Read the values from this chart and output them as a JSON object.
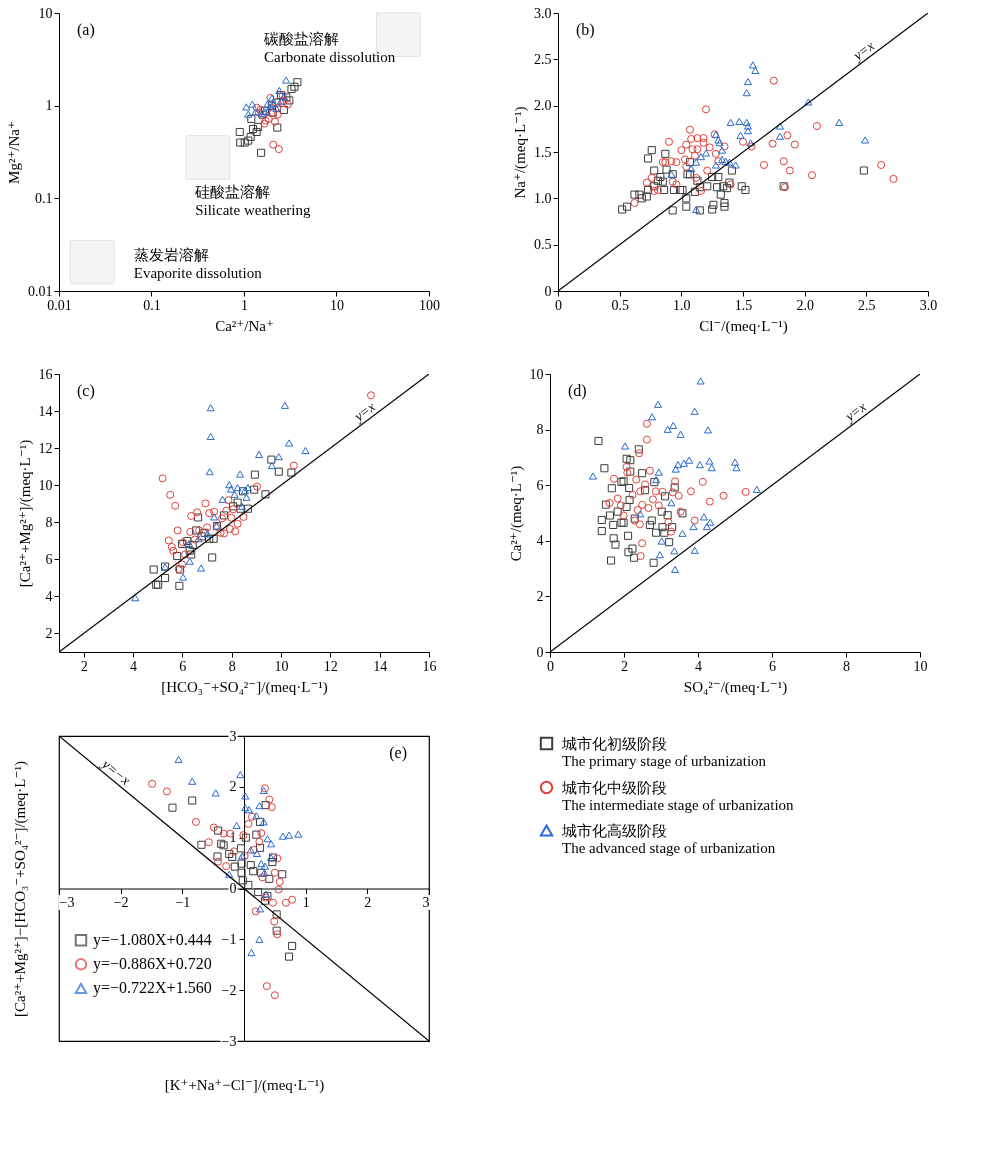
{
  "chart_data": [
    {
      "type": "scatter",
      "title": "(a)",
      "xlabel": "Ca²⁺/Na⁺",
      "ylabel": "Mg²⁺/Na⁺",
      "log": "xy",
      "xlim": [
        0.01,
        100
      ],
      "ylim": [
        0.01,
        10
      ],
      "xticks": [
        0.01,
        0.1,
        1,
        10,
        100
      ],
      "yticks": [
        0.01,
        0.1,
        1,
        10
      ],
      "annotations": [
        "碳酸盐溶解\nCarbonate dissolution",
        "硅酸盐溶解\nSilicate weathering",
        "蒸发岩溶解\nEvaporite dissolution"
      ],
      "series": [
        {
          "color": "#3c3c3c",
          "marker": "square",
          "x": [
            0.9,
            0.91,
            1.02,
            1.11,
            1.18,
            1.25,
            1.37,
            1.42,
            1.53,
            1.2,
            1.59,
            2.29,
            2.7,
            3.09,
            3.26,
            3.51,
            3.78,
            2.51,
            2.87,
            2.0,
            1.69,
            2.04,
            2.24
          ],
          "values": [
            0.52,
            0.4,
            0.4,
            0.42,
            0.46,
            0.56,
            0.52,
            0.59,
            0.31,
            0.72,
            0.8,
            0.58,
            0.9,
            1.14,
            1.51,
            1.6,
            1.79,
            1.3,
            1.23,
            1.0,
            0.88,
            0.84,
            1.08
          ]
        },
        {
          "color": "#e0403a",
          "marker": "circle",
          "x": [
            1.37,
            1.45,
            1.66,
            1.71,
            1.93,
            2.07,
            2.16,
            2.29,
            2.32,
            2.07,
            2.38,
            2.7,
            2.98,
            1.85,
            1.5,
            2.61
          ],
          "values": [
            0.95,
            0.84,
            0.64,
            0.69,
            1.21,
            0.84,
            0.67,
            0.95,
            0.8,
            0.38,
            0.34,
            1.12,
            1.03,
            0.72,
            0.9,
            1.3
          ]
        },
        {
          "color": "#2a6ad0",
          "marker": "triangle",
          "x": [
            1.06,
            1.23,
            1.11,
            1.33,
            2.85,
            2.41,
            1.79,
            2.07,
            2.24,
            1.93,
            1.7,
            2.7,
            2.51,
            1.57,
            2.0
          ],
          "values": [
            0.97,
            1.04,
            0.81,
            0.86,
            1.89,
            1.46,
            1.04,
            1.04,
            0.93,
            0.97,
            0.86,
            1.26,
            1.12,
            0.82,
            1.21
          ]
        }
      ]
    },
    {
      "type": "scatter",
      "title": "(b)",
      "xlabel": "Cl⁻/(meq·L⁻¹)",
      "ylabel": "Na⁺/(meq·L⁻¹)",
      "xlim": [
        0,
        3
      ],
      "ylim": [
        0,
        3
      ],
      "xticks": [
        0,
        0.5,
        {
          "value": 1,
          "label": "1.0"
        },
        1.5,
        {
          "value": 2,
          "label": "2.0"
        },
        2.5,
        {
          "value": 3,
          "label": "3.0"
        }
      ],
      "yticks": [
        0,
        0.5,
        {
          "value": 1,
          "label": "1.0"
        },
        1.5,
        {
          "value": 2,
          "label": "2.0"
        },
        2.5,
        {
          "value": 3,
          "label": "3.0"
        }
      ],
      "series": [
        {
          "color": "#3c3c3c",
          "marker": "square",
          "x": [
            0.52,
            0.56,
            0.62,
            0.66,
            0.68,
            0.72,
            0.73,
            0.76,
            0.73,
            0.78,
            0.78,
            0.81,
            0.83,
            0.85,
            0.87,
            0.88,
            0.86,
            0.93,
            0.93,
            0.94,
            0.99,
            1.01,
            1.04,
            1.04,
            1.05,
            1.07,
            1.07,
            1.11,
            1.13,
            1.15,
            1.15,
            1.21,
            1.25,
            1.25,
            1.26,
            1.29,
            1.3,
            1.32,
            1.34,
            1.35,
            1.35,
            1.37,
            1.39,
            1.41,
            1.49,
            1.52,
            1.83,
            2.48
          ],
          "values": [
            0.88,
            0.91,
            1.04,
            1.04,
            1.0,
            1.02,
            1.43,
            1.52,
            1.09,
            1.3,
            1.13,
            1.19,
            1.23,
            1.18,
            1.48,
            1.31,
            1.09,
            1.26,
            0.87,
            1.09,
            1.09,
            1.09,
            1.0,
            0.91,
            1.26,
            1.39,
            1.26,
            1.07,
            1.19,
            0.87,
            1.12,
            1.13,
            1.23,
            0.88,
            0.93,
            1.12,
            1.23,
            1.04,
            1.13,
            0.95,
            0.91,
            1.11,
            1.17,
            1.3,
            1.13,
            1.09,
            1.13,
            1.3
          ]
        },
        {
          "color": "#e0403a",
          "marker": "circle",
          "x": [
            0.62,
            0.72,
            0.76,
            0.78,
            0.81,
            0.85,
            0.87,
            0.9,
            0.92,
            0.93,
            0.96,
            0.96,
            1.0,
            1.03,
            1.04,
            1.04,
            1.07,
            1.08,
            1.09,
            1.11,
            1.12,
            1.13,
            1.13,
            1.16,
            1.18,
            1.18,
            1.2,
            1.21,
            1.23,
            1.27,
            1.28,
            1.3,
            1.35,
            1.4,
            1.5,
            1.57,
            1.67,
            1.74,
            1.75,
            1.83,
            1.84,
            1.86,
            1.88,
            1.92,
            2.06,
            2.1,
            2.62,
            2.72
          ],
          "values": [
            0.95,
            1.17,
            1.22,
            1.08,
            1.09,
            1.39,
            1.39,
            1.61,
            1.4,
            1.18,
            1.39,
            1.15,
            1.52,
            1.42,
            1.58,
            1.34,
            1.74,
            1.64,
            1.53,
            1.46,
            1.22,
            1.65,
            1.53,
            1.08,
            1.65,
            1.6,
            1.96,
            1.3,
            1.55,
            1.69,
            1.48,
            1.4,
            1.56,
            1.15,
            1.61,
            1.56,
            1.36,
            1.59,
            2.27,
            1.4,
            1.12,
            1.68,
            1.3,
            1.58,
            1.25,
            1.78,
            1.36,
            1.21
          ]
        },
        {
          "color": "#2a6ad0",
          "marker": "triangle",
          "x": [
            0.92,
            1.08,
            1.12,
            1.12,
            1.16,
            1.2,
            1.28,
            1.28,
            1.3,
            1.31,
            1.33,
            1.33,
            1.36,
            1.39,
            1.4,
            1.44,
            1.47,
            1.48,
            1.53,
            1.53,
            1.54,
            1.54,
            1.54,
            1.56,
            1.58,
            1.6,
            1.8,
            1.8,
            2.03,
            2.28,
            2.49
          ],
          "values": [
            1.26,
            1.32,
            1.39,
            0.88,
            1.45,
            1.49,
            1.69,
            1.36,
            1.63,
            1.6,
            1.52,
            1.42,
            1.4,
            1.39,
            1.82,
            1.36,
            1.83,
            1.68,
            2.14,
            1.82,
            1.78,
            1.73,
            2.26,
            1.6,
            2.44,
            2.38,
            1.67,
            1.78,
            2.04,
            1.82,
            1.63
          ]
        },
        {
          "type": "line",
          "name": "y=x",
          "color": "#000000",
          "x": [
            0,
            3
          ],
          "values": [
            0,
            3
          ]
        }
      ]
    },
    {
      "type": "scatter",
      "title": "(c)",
      "xlabel": "[HCO₃⁻+SO₄²⁻]/(meq·L⁻¹)",
      "ylabel": "[Ca²⁺+Mg²⁺]/(meq·L⁻¹)",
      "xlim": [
        1,
        16
      ],
      "ylim": [
        1,
        16
      ],
      "xticks": [
        2,
        4,
        6,
        8,
        10,
        12,
        14,
        16
      ],
      "yticks": [
        2,
        4,
        6,
        8,
        10,
        12,
        14,
        16
      ],
      "series": [
        {
          "color": "#3c3c3c",
          "marker": "square",
          "x": [
            4.84,
            4.94,
            5.02,
            5.3,
            5.3,
            5.79,
            5.88,
            5.91,
            5.99,
            6.2,
            6.3,
            6.36,
            6.42,
            6.56,
            6.64,
            6.78,
            6.9,
            7.09,
            7.21,
            7.27,
            7.41,
            7.69,
            8.06,
            8.24,
            8.36,
            8.46,
            8.66,
            8.91,
            8.94,
            9.37,
            9.61,
            9.91,
            10.42
          ],
          "values": [
            5.45,
            4.63,
            4.63,
            4.99,
            5.61,
            6.18,
            4.57,
            5.45,
            6.83,
            6.99,
            6.46,
            6.26,
            6.78,
            7.56,
            8.26,
            7.24,
            7.43,
            7.11,
            6.1,
            7.11,
            7.8,
            8.37,
            8.86,
            9.06,
            8.73,
            9.67,
            8.73,
            9.76,
            10.57,
            9.51,
            11.38,
            10.73,
            10.68
          ]
        },
        {
          "color": "#e0403a",
          "marker": "circle",
          "x": [
            5.2,
            5.45,
            5.51,
            5.57,
            5.63,
            5.71,
            5.81,
            5.85,
            5.99,
            6.03,
            6.11,
            6.32,
            6.36,
            6.51,
            6.6,
            6.68,
            6.94,
            7.0,
            7.09,
            7.29,
            7.39,
            7.55,
            7.61,
            7.69,
            7.78,
            7.87,
            7.93,
            7.99,
            8.06,
            8.14,
            8.24,
            8.48,
            9.03,
            10.52,
            13.65
          ],
          "values": [
            10.37,
            7.02,
            9.48,
            6.67,
            6.46,
            8.89,
            7.56,
            5.48,
            5.72,
            6.91,
            6.26,
            7.48,
            8.34,
            7.07,
            8.54,
            7.56,
            9.02,
            7.72,
            8.49,
            8.57,
            7.76,
            7.43,
            8.21,
            7.4,
            8.62,
            9.19,
            7.64,
            8.24,
            8.7,
            7.51,
            7.92,
            8.29,
            9.92,
            11.06,
            14.85
          ]
        },
        {
          "color": "#2a6ad0",
          "marker": "triangle",
          "x": [
            4.09,
            5.3,
            6.03,
            6.3,
            6.27,
            6.66,
            6.76,
            7.02,
            7.11,
            7.15,
            7.15,
            7.29,
            7.39,
            7.63,
            7.9,
            7.97,
            8.12,
            8.24,
            8.34,
            8.42,
            8.54,
            8.6,
            8.66,
            9.11,
            9.63,
            9.91,
            10.16,
            10.33,
            10.99
          ],
          "values": [
            3.93,
            5.59,
            5.04,
            5.9,
            6.86,
            7.11,
            5.53,
            7.37,
            10.73,
            12.63,
            14.18,
            8.29,
            7.8,
            9.24,
            10.03,
            9.79,
            9.51,
            9.87,
            10.6,
            8.86,
            9.71,
            9.35,
            9.87,
            11.66,
            11.06,
            11.54,
            14.31,
            12.28,
            11.87
          ]
        },
        {
          "type": "line",
          "name": "y=x",
          "color": "#000000",
          "x": [
            1,
            16
          ],
          "values": [
            1,
            16
          ]
        }
      ]
    },
    {
      "type": "scatter",
      "title": "(d)",
      "xlabel": "SO₄²⁻/(meq·L⁻¹)",
      "ylabel": "Ca²⁺/(meq·L⁻¹)",
      "xlim": [
        0,
        10
      ],
      "ylim": [
        0,
        10
      ],
      "xticks": [
        0,
        2,
        4,
        6,
        8,
        10
      ],
      "yticks": [
        0,
        2,
        4,
        6,
        8,
        10
      ],
      "series": [
        {
          "color": "#3c3c3c",
          "marker": "square",
          "x": [
            1.31,
            1.47,
            1.4,
            1.4,
            1.51,
            1.62,
            1.65,
            1.67,
            1.71,
            1.72,
            1.77,
            1.83,
            1.93,
            1.93,
            1.99,
            1.99,
            2.07,
            2.07,
            2.11,
            2.12,
            2.14,
            2.15,
            2.17,
            2.17,
            2.23,
            2.27,
            2.29,
            2.4,
            2.49,
            2.57,
            2.7,
            2.75,
            2.8,
            2.82,
            2.87,
            3.02,
            3.04,
            3.09,
            3.11,
            3.18,
            3.22,
            3.3,
            3.37,
            3.58
          ],
          "values": [
            7.59,
            6.61,
            4.75,
            4.35,
            5.3,
            4.91,
            3.29,
            5.89,
            4.57,
            4.09,
            3.86,
            5.05,
            6.12,
            4.65,
            6.14,
            4.65,
            6.95,
            5.22,
            4.18,
            3.59,
            5.9,
            5.47,
            6.9,
            6.49,
            3.72,
            3.39,
            4.8,
            7.29,
            6.43,
            5.82,
            4.57,
            4.73,
            3.21,
            6.11,
            4.29,
            5.05,
            4.49,
            4.29,
            5.6,
            4.92,
            3.95,
            4.49,
            5.92,
            4.99
          ]
        },
        {
          "color": "#e0403a",
          "marker": "circle",
          "x": [
            1.61,
            1.73,
            1.83,
            1.91,
            1.99,
            2.07,
            2.09,
            2.23,
            2.29,
            2.33,
            2.37,
            2.41,
            2.44,
            2.43,
            2.49,
            2.45,
            2.49,
            2.57,
            2.62,
            2.62,
            2.66,
            2.7,
            2.78,
            2.86,
            2.94,
            3.04,
            3.2,
            3.27,
            3.32,
            3.38,
            3.48,
            3.53,
            3.81,
            3.91,
            4.13,
            4.32,
            4.69,
            5.29
          ],
          "values": [
            5.36,
            6.23,
            5.52,
            5.27,
            4.91,
            6.66,
            6.45,
            5.65,
            4.73,
            6.2,
            5.11,
            7.15,
            5.78,
            4.59,
            3.91,
            3.45,
            5.29,
            6.03,
            8.21,
            7.64,
            5.18,
            6.52,
            5.49,
            5.78,
            5.27,
            5.76,
            4.67,
            4.33,
            5.74,
            6.14,
            5.62,
            5.05,
            5.78,
            4.73,
            6.12,
            5.41,
            5.62,
            5.76
          ]
        },
        {
          "color": "#2a6ad0",
          "marker": "triangle",
          "x": [
            1.16,
            2.03,
            2.44,
            2.76,
            2.87,
            2.94,
            2.92,
            2.97,
            3.02,
            3.18,
            3.28,
            3.33,
            3.36,
            3.38,
            3.4,
            3.46,
            3.53,
            3.58,
            3.62,
            3.76,
            3.88,
            3.91,
            3.91,
            4.05,
            4.07,
            4.16,
            4.24,
            4.27,
            4.31,
            4.33,
            4.37,
            5.0,
            5.04,
            5.59
          ],
          "values": [
            6.33,
            7.41,
            4.97,
            8.46,
            6.2,
            6.47,
            8.91,
            3.5,
            3.99,
            8.01,
            5.37,
            8.15,
            3.64,
            2.97,
            6.58,
            6.74,
            7.83,
            4.27,
            6.79,
            6.9,
            4.51,
            3.66,
            8.66,
            6.74,
            9.75,
            4.86,
            4.51,
            7.99,
            6.87,
            4.67,
            6.63,
            6.83,
            6.63,
            5.85
          ]
        },
        {
          "type": "line",
          "name": "y=x",
          "color": "#000000",
          "x": [
            0,
            10
          ],
          "values": [
            0,
            10
          ]
        }
      ]
    },
    {
      "type": "scatter",
      "title": "(e)",
      "xlabel": "[K⁺+Na⁺−Cl⁻]/(meq·L⁻¹)",
      "ylabel": "[Ca²⁺+Mg²⁺]−[HCO₃⁻+SO₄²⁻]/(meq·L⁻¹)",
      "xlim": [
        -3,
        3
      ],
      "ylim": [
        -3,
        3
      ],
      "xticks": [
        -3,
        -2,
        -1,
        {
          "value": 0,
          "label": null
        },
        1,
        2,
        3
      ],
      "yticks": [
        -3,
        -2,
        -1,
        0,
        1,
        2,
        3
      ],
      "legend": "right",
      "annotations": [
        "y=−1.080X+0.444",
        "y=−0.886X+0.720",
        "y=−0.722X+1.560"
      ],
      "series": [
        {
          "name": "城市化初级阶段\nThe primary stage of urbanization",
          "color": "#3c3c3c",
          "marker": "square",
          "x": [
            -1.16,
            -0.84,
            -0.69,
            -0.42,
            -0.43,
            -0.37,
            -0.33,
            -0.24,
            -0.19,
            -0.15,
            -0.05,
            -0.04,
            -0.04,
            -0.02,
            0.03,
            0.11,
            0.15,
            0.07,
            0.2,
            0.23,
            0.26,
            0.26,
            0.28,
            0.35,
            0.34,
            0.38,
            0.41,
            0.46,
            0.47,
            0.53,
            0.53,
            0.62,
            0.73,
            0.78
          ],
          "values": [
            1.59,
            1.73,
            0.86,
            1.14,
            0.63,
            0.88,
            0.85,
            0.68,
            0.62,
            0.43,
            0.79,
            0.49,
            0.31,
            0.16,
            1.0,
            0.46,
            0.34,
            0.07,
            1.06,
            -0.07,
            0.8,
            1.31,
            0.31,
            1.64,
            -0.24,
            -0.15,
            0.19,
            0.52,
            0.61,
            -0.51,
            -0.83,
            0.28,
            -1.34,
            -1.13
          ]
        },
        {
          "name": "城市化中级阶段\nThe intermediate stage of urbanization",
          "color": "#e0403a",
          "marker": "circle",
          "x": [
            -1.49,
            -1.25,
            -0.78,
            -0.57,
            -0.49,
            -0.42,
            -0.33,
            -0.29,
            -0.22,
            -0.16,
            -0.01,
            0.01,
            0.07,
            0.13,
            0.16,
            0.19,
            0.25,
            0.28,
            0.3,
            0.34,
            0.35,
            0.37,
            0.41,
            0.45,
            0.47,
            0.49,
            0.5,
            0.54,
            0.54,
            0.5,
            0.56,
            0.58,
            0.68,
            0.78
          ],
          "values": [
            2.06,
            1.91,
            1.31,
            0.91,
            1.2,
            0.53,
            1.08,
            0.44,
            1.08,
            0.73,
            1.05,
            0.64,
            1.27,
            1.41,
            0.76,
            -0.45,
            0.92,
            1.09,
            0.22,
            1.97,
            -0.18,
            -1.92,
            1.75,
            1.6,
            -0.28,
            -0.65,
            0.31,
            -0.9,
            0.59,
            -2.1,
            -0.02,
            0.13,
            -0.28,
            -0.22
          ]
        },
        {
          "name": "城市化高级阶段\nThe advanced stage of urbanization",
          "color": "#2a6ad0",
          "marker": "triangle",
          "x": [
            -1.06,
            -0.84,
            -0.46,
            -0.12,
            -0.06,
            -0.24,
            -0.03,
            0.02,
            0.02,
            0.08,
            0.11,
            0.2,
            0.21,
            0.25,
            0.26,
            0.25,
            0.12,
            0.28,
            0.32,
            0.32,
            0.33,
            0.34,
            0.36,
            0.38,
            0.44,
            0.44,
            0.63,
            0.73,
            0.88
          ],
          "values": [
            2.54,
            2.11,
            1.88,
            1.24,
            2.24,
            0.28,
            0.64,
            1.82,
            1.59,
            1.55,
            0.76,
            1.43,
            0.69,
            1.63,
            -0.4,
            -1.0,
            -1.26,
            0.49,
            1.31,
            1.93,
            0.31,
            0.44,
            -0.11,
            0.98,
            0.88,
            0.61,
            1.03,
            1.05,
            1.07
          ]
        },
        {
          "type": "line",
          "name": "y=−x",
          "color": "#000000",
          "x": [
            -3,
            3
          ],
          "values": [
            3,
            -3
          ]
        }
      ]
    }
  ]
}
